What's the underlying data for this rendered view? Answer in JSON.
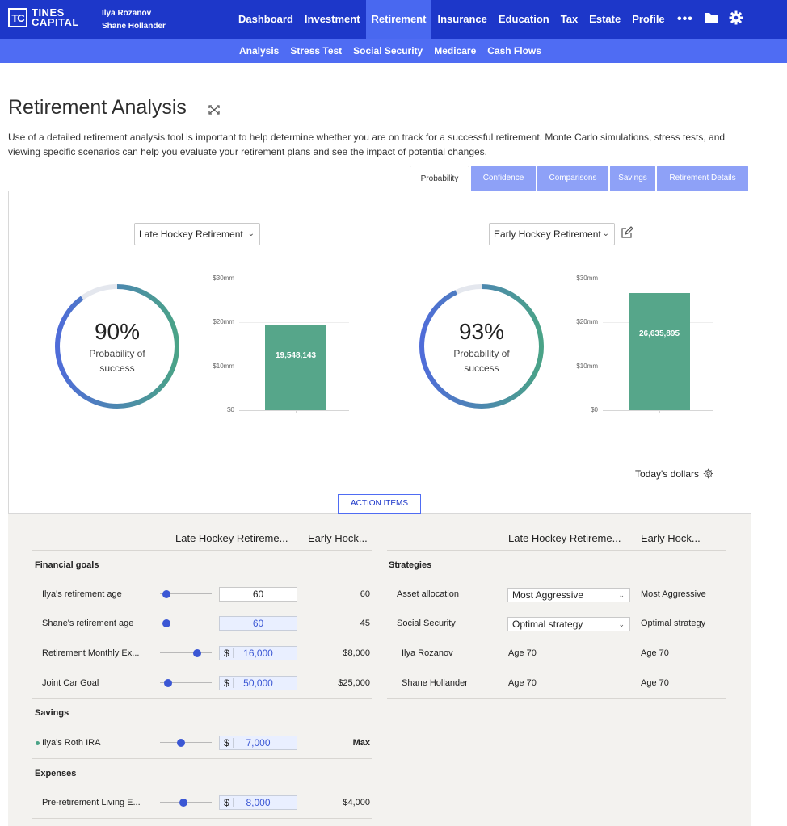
{
  "brand": {
    "mark": "TC",
    "line1": "TINES",
    "line2": "CAPITAL"
  },
  "users": [
    "Ilya Rozanov",
    "Shane Hollander"
  ],
  "nav": [
    "Dashboard",
    "Investment",
    "Retirement",
    "Insurance",
    "Education",
    "Tax",
    "Estate",
    "Profile"
  ],
  "more_label": "•••",
  "subnav": [
    "Analysis",
    "Stress Test",
    "Social Security",
    "Medicare",
    "Cash Flows"
  ],
  "page": {
    "title": "Retirement Analysis",
    "intro": "Use of a detailed retirement analysis tool is important to help determine whether you are on track for a successful retirement. Monte Carlo simulations, stress tests, and viewing specific scenarios can help you evaluate your retirement plans and see the impact of potential changes."
  },
  "tabs": [
    "Probability",
    "Confidence",
    "Comparisons",
    "Savings",
    "Retirement Details"
  ],
  "scenarios": [
    {
      "name": "Late Hockey Retirement",
      "probability": "90%",
      "probability_value": 0.9,
      "prob_label_1": "Probability of",
      "prob_label_2": "success",
      "bar_value": 19548143,
      "bar_label": "19,548,143"
    },
    {
      "name": "Early Hockey Retirement",
      "probability": "93%",
      "probability_value": 0.93,
      "prob_label_1": "Probability of",
      "prob_label_2": "success",
      "bar_value": 26635895,
      "bar_label": "26,635,895"
    }
  ],
  "chart_data": [
    {
      "type": "bar",
      "categories": [
        ""
      ],
      "values": [
        19548143
      ],
      "yticks": [
        "$30mm",
        "$20mm",
        "$10mm",
        "$0"
      ],
      "ylim": [
        0,
        30000000
      ]
    },
    {
      "type": "bar",
      "categories": [
        ""
      ],
      "values": [
        26635895
      ],
      "yticks": [
        "$30mm",
        "$20mm",
        "$10mm",
        "$0"
      ],
      "ylim": [
        0,
        30000000
      ]
    }
  ],
  "todays_dollars": "Today's dollars",
  "action_items": "ACTION ITEMS",
  "table": {
    "col_a": "Late Hockey Retireme...",
    "col_b": "Early Hock...",
    "col_c": "Late Hockey Retireme...",
    "col_d": "Early Hock...",
    "financial_goals": "Financial goals",
    "goals": [
      {
        "label": "Ilya's retirement age",
        "currency": "",
        "value": "60",
        "compare": "60",
        "level": 0.05
      },
      {
        "label": "Shane's retirement age",
        "currency": "",
        "value": "60",
        "compare": "45",
        "level": 0.05
      },
      {
        "label": "Retirement Monthly Ex...",
        "currency": "$",
        "value": "16,000",
        "compare": "$8,000",
        "level": 0.75
      },
      {
        "label": "Joint Car Goal",
        "currency": "$",
        "value": "50,000",
        "compare": "$25,000",
        "level": 0.1
      }
    ],
    "savings": "Savings",
    "savings_rows": [
      {
        "label": "Ilya's Roth IRA",
        "currency": "$",
        "value": "7,000",
        "compare": "Max",
        "level": 0.38
      }
    ],
    "expenses": "Expenses",
    "expense_rows": [
      {
        "label": "Pre-retirement Living E...",
        "currency": "$",
        "value": "8,000",
        "compare": "$4,000",
        "level": 0.45
      }
    ],
    "strategies": "Strategies",
    "strategy_rows": [
      {
        "label": "Asset allocation",
        "value": "Most Aggressive",
        "compare": "Most Aggressive"
      },
      {
        "label": "Social Security",
        "value": "Optimal strategy",
        "compare": "Optimal strategy"
      }
    ],
    "people_rows": [
      {
        "label": "Ilya Rozanov",
        "value": "Age 70",
        "compare": "Age 70"
      },
      {
        "label": "Shane Hollander",
        "value": "Age 70",
        "compare": "Age 70"
      }
    ]
  }
}
